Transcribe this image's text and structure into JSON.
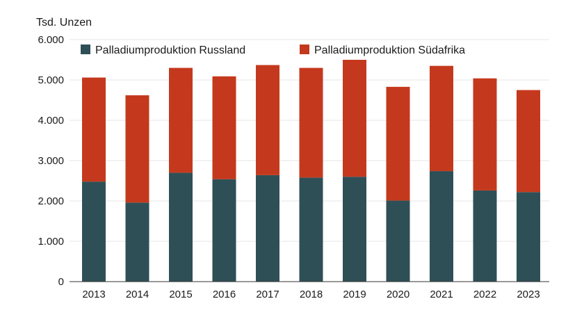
{
  "chart_data": {
    "type": "bar",
    "stacked": true,
    "unit_label": "Tsd. Unzen",
    "categories": [
      "2013",
      "2014",
      "2015",
      "2016",
      "2017",
      "2018",
      "2019",
      "2020",
      "2021",
      "2022",
      "2023"
    ],
    "series": [
      {
        "name": "Palladiumproduktion Russland",
        "color": "#2f4f56",
        "values": [
          2480,
          1960,
          2700,
          2540,
          2640,
          2580,
          2600,
          2010,
          2740,
          2260,
          2220
        ]
      },
      {
        "name": "Palladiumproduktion Südafrika",
        "color": "#c4391d",
        "values": [
          2580,
          2660,
          2600,
          2550,
          2730,
          2720,
          2900,
          2820,
          2610,
          2780,
          2530
        ]
      }
    ],
    "ylim": [
      0,
      6000
    ],
    "yticks": [
      {
        "value": 0,
        "label": "0"
      },
      {
        "value": 1000,
        "label": "1.000"
      },
      {
        "value": 2000,
        "label": "2.000"
      },
      {
        "value": 3000,
        "label": "3.000"
      },
      {
        "value": 4000,
        "label": "4.000"
      },
      {
        "value": 5000,
        "label": "5.000"
      },
      {
        "value": 6000,
        "label": "6.000"
      }
    ],
    "grid": true,
    "legend_position": "top"
  }
}
